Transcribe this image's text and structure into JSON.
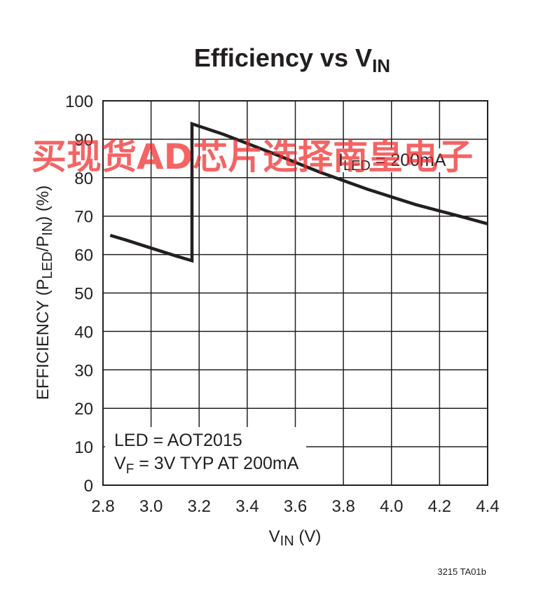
{
  "chart_data": {
    "type": "line",
    "title": "Efficiency vs V",
    "title_sub": "IN",
    "xlabel": "V",
    "xlabel_sub": "IN",
    "xlabel_unit": " (V)",
    "ylabel_parts": [
      "EFFICIENCY (P",
      "LED",
      "/P",
      "IN",
      ") (%)"
    ],
    "xlim": [
      2.8,
      4.4
    ],
    "ylim": [
      0,
      100
    ],
    "xticks": [
      "2.8",
      "3.0",
      "3.2",
      "3.4",
      "3.6",
      "3.8",
      "4.0",
      "4.2",
      "4.4"
    ],
    "yticks": [
      "0",
      "10",
      "20",
      "30",
      "40",
      "50",
      "60",
      "70",
      "80",
      "90",
      "100"
    ],
    "grid": true,
    "series": [
      {
        "x": [
          2.83,
          2.9,
          3.0,
          3.1,
          3.17,
          3.17,
          3.3,
          3.5,
          3.7,
          3.9,
          4.1,
          4.3,
          4.4
        ],
        "y": [
          65,
          63.7,
          61.7,
          59.7,
          58.4,
          94,
          91.3,
          86.5,
          81.5,
          77,
          73,
          69.7,
          68
        ]
      }
    ],
    "annotations": {
      "current": {
        "main": "I",
        "sub": "LED",
        "rest": " = 200mA"
      },
      "led": "LED = AOT2015",
      "vf": {
        "main": "V",
        "sub": "F",
        "rest": " = 3V TYP AT 200mA"
      }
    },
    "figure_id": "3215 TA01b",
    "line_color": "#231f20",
    "grid_color": "#231f20"
  },
  "watermark": "买现货AD芯片选择南皇电子",
  "watermark_color": "#f02828"
}
